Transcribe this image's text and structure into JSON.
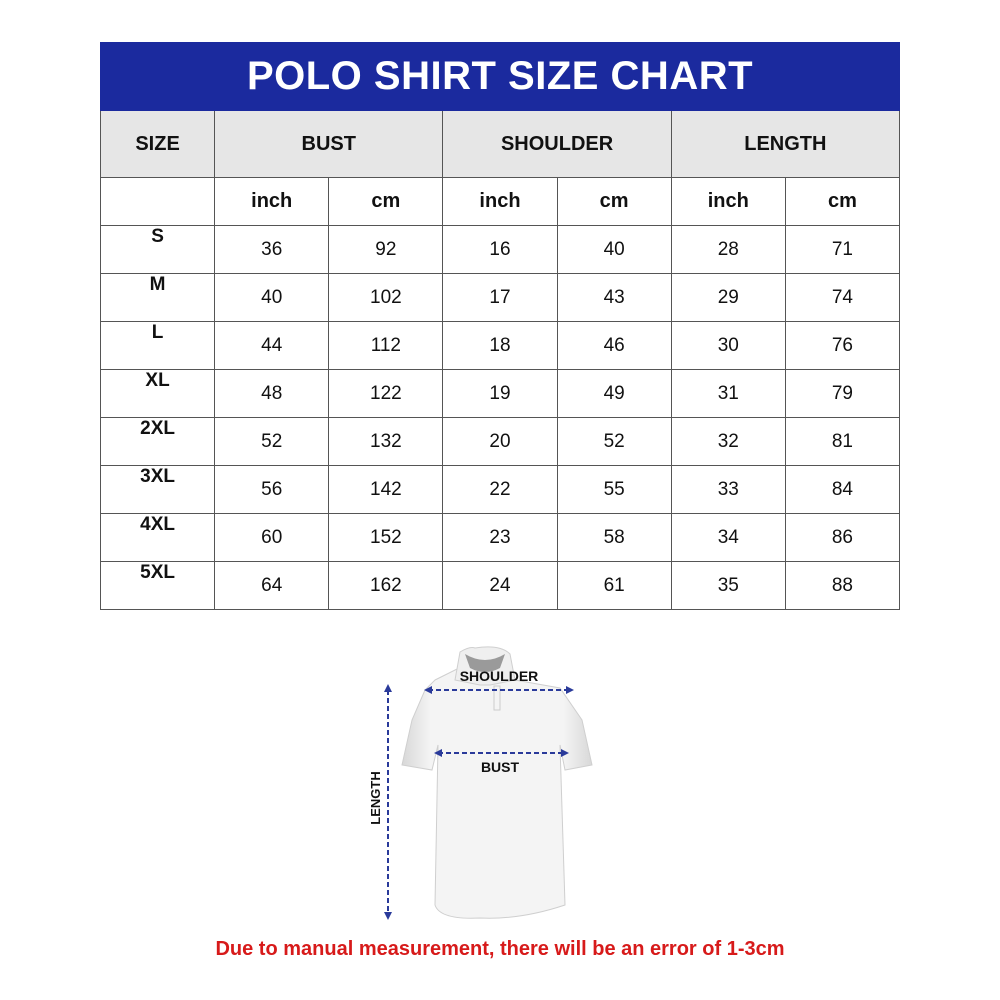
{
  "title": "POLO SHIRT SIZE CHART",
  "headers": [
    "SIZE",
    "BUST",
    "SHOULDER",
    "LENGTH"
  ],
  "units": [
    "inch",
    "cm",
    "inch",
    "cm",
    "inch",
    "cm"
  ],
  "rows": [
    {
      "size": "S",
      "values": [
        "36",
        "92",
        "16",
        "40",
        "28",
        "71"
      ]
    },
    {
      "size": "M",
      "values": [
        "40",
        "102",
        "17",
        "43",
        "29",
        "74"
      ]
    },
    {
      "size": "L",
      "values": [
        "44",
        "112",
        "18",
        "46",
        "30",
        "76"
      ]
    },
    {
      "size": "XL",
      "values": [
        "48",
        "122",
        "19",
        "49",
        "31",
        "79"
      ]
    },
    {
      "size": "2XL",
      "values": [
        "52",
        "132",
        "20",
        "52",
        "32",
        "81"
      ]
    },
    {
      "size": "3XL",
      "values": [
        "56",
        "142",
        "22",
        "55",
        "33",
        "84"
      ]
    },
    {
      "size": "4XL",
      "values": [
        "60",
        "152",
        "23",
        "58",
        "34",
        "86"
      ]
    },
    {
      "size": "5XL",
      "values": [
        "64",
        "162",
        "24",
        "61",
        "35",
        "88"
      ]
    }
  ],
  "diagram": {
    "shoulder_label": "SHOULDER",
    "bust_label": "BUST",
    "length_label": "LENGTH"
  },
  "note": "Due to manual measurement, there will be an error of 1-3cm",
  "colors": {
    "header": "#1b2a9e",
    "note": "#d71a1a",
    "arrows": "#2a3a9a"
  }
}
